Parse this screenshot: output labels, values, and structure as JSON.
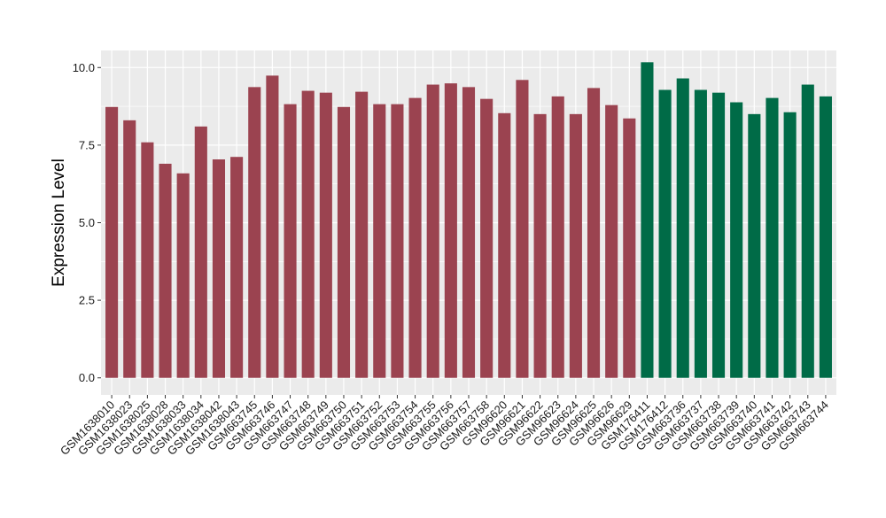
{
  "chart_data": {
    "type": "bar",
    "title": "",
    "xlabel": "",
    "ylabel": "Expression Level",
    "ylim": [
      -0.55,
      10.55
    ],
    "yticks": [
      0.0,
      2.5,
      5.0,
      7.5,
      10.0
    ],
    "ytick_labels": [
      "0.0",
      "2.5",
      "5.0",
      "7.5",
      "10.0"
    ],
    "grid": true,
    "legend": "none",
    "categories": [
      "GSM1638010",
      "GSM1638023",
      "GSM1638025",
      "GSM1638028",
      "GSM1638033",
      "GSM1638034",
      "GSM1638042",
      "GSM1638043",
      "GSM663745",
      "GSM663746",
      "GSM663747",
      "GSM663748",
      "GSM663749",
      "GSM663750",
      "GSM663751",
      "GSM663752",
      "GSM663753",
      "GSM663754",
      "GSM663755",
      "GSM663756",
      "GSM663757",
      "GSM663758",
      "GSM96620",
      "GSM96621",
      "GSM96622",
      "GSM96623",
      "GSM96624",
      "GSM96625",
      "GSM96626",
      "GSM96629",
      "GSM176411",
      "GSM176412",
      "GSM663736",
      "GSM663737",
      "GSM663738",
      "GSM663739",
      "GSM663740",
      "GSM663741",
      "GSM663742",
      "GSM663743",
      "GSM663744"
    ],
    "values": [
      8.73,
      8.3,
      7.59,
      6.9,
      6.59,
      8.1,
      7.04,
      7.12,
      9.37,
      9.74,
      8.82,
      9.25,
      9.19,
      8.73,
      9.22,
      8.82,
      8.82,
      9.02,
      9.45,
      9.49,
      9.37,
      8.99,
      8.53,
      9.6,
      8.5,
      9.07,
      8.5,
      9.34,
      8.79,
      8.36,
      10.17,
      9.28,
      9.65,
      9.28,
      9.19,
      8.88,
      8.5,
      9.02,
      8.56,
      9.45,
      9.07
    ],
    "bar_colors": [
      "#9b4350",
      "#9b4350",
      "#9b4350",
      "#9b4350",
      "#9b4350",
      "#9b4350",
      "#9b4350",
      "#9b4350",
      "#9b4350",
      "#9b4350",
      "#9b4350",
      "#9b4350",
      "#9b4350",
      "#9b4350",
      "#9b4350",
      "#9b4350",
      "#9b4350",
      "#9b4350",
      "#9b4350",
      "#9b4350",
      "#9b4350",
      "#9b4350",
      "#9b4350",
      "#9b4350",
      "#9b4350",
      "#9b4350",
      "#9b4350",
      "#9b4350",
      "#9b4350",
      "#9b4350",
      "#006b47",
      "#006b47",
      "#006b47",
      "#006b47",
      "#006b47",
      "#006b47",
      "#006b47",
      "#006b47",
      "#006b47",
      "#006b47",
      "#006b47"
    ],
    "panel_background": "#ebebeb",
    "grid_color": "#ffffff"
  }
}
